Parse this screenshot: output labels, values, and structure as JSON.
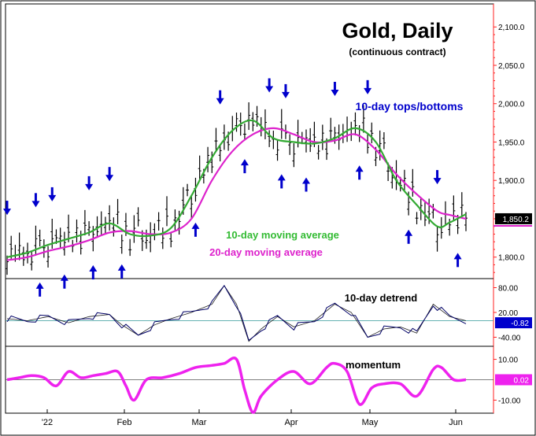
{
  "chart_data": [
    {
      "type": "line",
      "title": "Gold, Daily",
      "subtitle": "(continuous contract)",
      "y_ticks": [
        "2,100.0",
        "2,050.0",
        "2,000.0",
        "1,950.0",
        "1,900.0",
        "1,850.0",
        "1,800.0"
      ],
      "ylim": [
        1772,
        2130
      ],
      "x_tick_labels": [
        "'22",
        "Feb",
        "Mar",
        "Apr",
        "May",
        "Jun"
      ],
      "last_value_label": "1,850.2",
      "colors": {
        "bars": "#000000",
        "ma10": "#33aa33",
        "ma20": "#dd22cc",
        "arrows": "#0000cc",
        "last_value_bg": "#000000"
      },
      "annotations": {
        "tops_bottoms": "10-day tops/bottoms",
        "ma10": "10-day moving average",
        "ma20": "20-day moving average"
      },
      "series": [
        {
          "name": "10-day moving average",
          "x": [
            0,
            5,
            10,
            15,
            20,
            25,
            30,
            35,
            40,
            45,
            50,
            55,
            60,
            65,
            70,
            75,
            80,
            85,
            90,
            95,
            100,
            105,
            108,
            112
          ],
          "values": [
            1800,
            1806,
            1816,
            1824,
            1832,
            1844,
            1830,
            1828,
            1838,
            1880,
            1930,
            1965,
            1978,
            1955,
            1950,
            1948,
            1955,
            1968,
            1950,
            1900,
            1868,
            1840,
            1845,
            1856
          ]
        },
        {
          "name": "20-day moving average",
          "x": [
            0,
            5,
            10,
            15,
            20,
            25,
            30,
            35,
            40,
            45,
            50,
            55,
            60,
            65,
            70,
            75,
            80,
            85,
            90,
            95,
            100,
            105,
            108,
            112
          ],
          "values": [
            1796,
            1800,
            1808,
            1814,
            1822,
            1832,
            1834,
            1830,
            1832,
            1850,
            1900,
            1938,
            1960,
            1968,
            1960,
            1950,
            1952,
            1960,
            1940,
            1908,
            1882,
            1860,
            1855,
            1850
          ]
        }
      ],
      "tops": [
        0,
        7,
        11,
        20,
        25,
        52,
        64,
        68,
        80,
        88,
        105
      ],
      "bottoms": [
        8,
        14,
        21,
        28,
        46,
        58,
        67,
        73,
        86,
        98,
        110
      ]
    },
    {
      "type": "line",
      "title": "10-day detrend",
      "y_ticks": [
        "80.00",
        "20.00",
        "-40.00"
      ],
      "ylim": [
        -60,
        100
      ],
      "last_value_label": "-0.82",
      "colors": {
        "line": "#000066",
        "zero": "#339999",
        "last_value_bg": "#0000cc"
      },
      "series": [
        {
          "x": [
            0,
            5,
            10,
            15,
            20,
            25,
            28,
            32,
            36,
            40,
            45,
            50,
            53,
            56,
            59,
            62,
            66,
            70,
            75,
            80,
            84,
            88,
            92,
            96,
            100,
            104,
            108,
            112
          ],
          "values": [
            5,
            0,
            10,
            -5,
            10,
            15,
            -10,
            -35,
            -10,
            5,
            20,
            40,
            85,
            40,
            -50,
            -20,
            10,
            -15,
            0,
            40,
            20,
            -40,
            -20,
            -15,
            -30,
            40,
            10,
            0
          ]
        }
      ]
    },
    {
      "type": "line",
      "title": "momentum",
      "y_ticks": [
        "10.00",
        "-10.00"
      ],
      "ylim": [
        -16,
        16
      ],
      "last_value_label": "0.02",
      "colors": {
        "line": "#ee22ee",
        "zero": "#555555",
        "last_value_bg": "#ee22ee"
      },
      "series": [
        {
          "x": [
            0,
            3,
            6,
            9,
            12,
            15,
            18,
            21,
            24,
            27,
            29,
            31,
            34,
            38,
            42,
            46,
            50,
            53,
            56,
            58,
            60,
            62,
            66,
            70,
            74,
            78,
            80,
            83,
            86,
            89,
            92,
            96,
            100,
            104,
            106,
            109,
            112
          ],
          "values": [
            0,
            1,
            2,
            1,
            -3,
            4,
            1,
            2,
            3,
            4,
            -3,
            -10,
            0,
            1,
            3,
            6,
            7,
            8,
            10,
            -5,
            -16,
            -8,
            0,
            4,
            -2,
            6,
            8,
            4,
            -12,
            -4,
            -2,
            -2,
            -8,
            5,
            6,
            0,
            0
          ]
        }
      ]
    }
  ]
}
